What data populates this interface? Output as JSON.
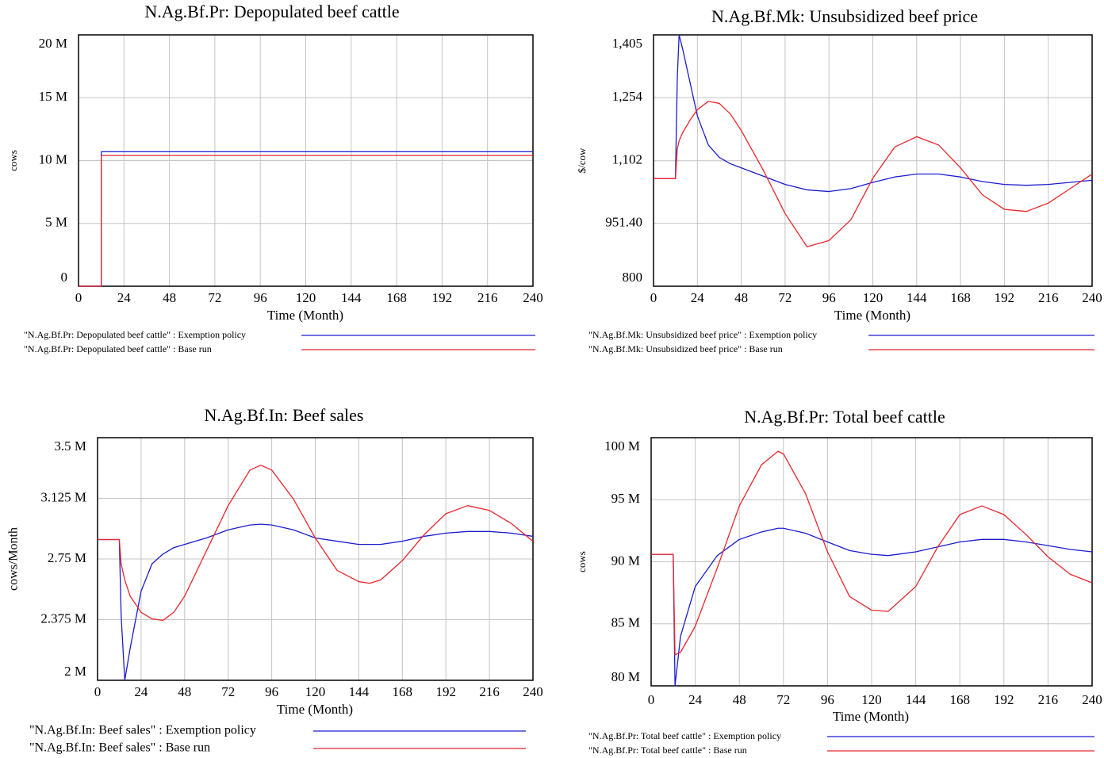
{
  "chart_data": [
    {
      "type": "line",
      "title": "N.Ag.Bf.Pr: Depopulated beef cattle",
      "x_label": "Time (Month)",
      "y_label": "cows",
      "x": [
        0,
        12,
        12,
        240
      ],
      "series": [
        {
          "name": "\"N.Ag.Bf.Pr: Depopulated beef cattle\" : Exemption policy",
          "color": "#1c1cd0",
          "values": [
            0,
            0,
            10700000,
            10700000
          ]
        },
        {
          "name": "\"N.Ag.Bf.Pr: Depopulated beef cattle\" : Base run",
          "color": "#e8262c",
          "values": [
            0,
            0,
            10400000,
            10400000
          ]
        }
      ],
      "xlim": [
        0,
        240
      ],
      "ylim": [
        0,
        20000000
      ],
      "xticks": [
        0,
        24,
        48,
        72,
        96,
        120,
        144,
        168,
        192,
        216,
        240
      ],
      "yticks": [
        {
          "value": 0,
          "label": "0"
        },
        {
          "value": 5000000,
          "label": "5 M"
        },
        {
          "value": 10000000,
          "label": "10 M"
        },
        {
          "value": 15000000,
          "label": "15 M"
        },
        {
          "value": 20000000,
          "label": "20 M"
        }
      ],
      "grid": true
    },
    {
      "type": "line",
      "title": "N.Ag.Bf.Mk: Unsubsidized beef price",
      "x_label": "Time (Month)",
      "y_label": "$/cow",
      "x": [
        0,
        12,
        13,
        14,
        16,
        20,
        24,
        30,
        36,
        42,
        48,
        60,
        72,
        84,
        96,
        108,
        120,
        132,
        144,
        156,
        168,
        180,
        192,
        204,
        216,
        228,
        240
      ],
      "series": [
        {
          "name": "\"N.Ag.Bf.Mk: Unsubsidized beef price\" : Exemption policy",
          "color": "#1c1cd0",
          "values": [
            1059,
            1059,
            1300,
            1405,
            1370,
            1290,
            1210,
            1140,
            1110,
            1095,
            1085,
            1065,
            1045,
            1032,
            1028,
            1035,
            1050,
            1063,
            1070,
            1070,
            1063,
            1052,
            1045,
            1043,
            1045,
            1050,
            1055
          ]
        },
        {
          "name": "\"N.Ag.Bf.Mk: Unsubsidized beef price\" : Base run",
          "color": "#e8262c",
          "values": [
            1059,
            1059,
            1130,
            1150,
            1170,
            1200,
            1225,
            1245,
            1240,
            1215,
            1175,
            1080,
            975,
            895,
            910,
            960,
            1060,
            1135,
            1160,
            1140,
            1085,
            1020,
            985,
            980,
            1000,
            1035,
            1070
          ]
        }
      ],
      "xlim": [
        0,
        240
      ],
      "ylim": [
        800,
        1405
      ],
      "xticks": [
        0,
        24,
        48,
        72,
        96,
        120,
        144,
        168,
        192,
        216,
        240
      ],
      "yticks": [
        800,
        {
          "value": 951.4,
          "label": "951.40"
        },
        {
          "value": 1102,
          "label": "1,102"
        },
        {
          "value": 1254,
          "label": "1,254"
        },
        {
          "value": 1405,
          "label": "1,405"
        }
      ],
      "grid": true
    },
    {
      "type": "line",
      "title": "N.Ag.Bf.In: Beef sales",
      "x_label": "Time (Month)",
      "y_label": "cows/Month",
      "x": [
        0,
        12,
        13,
        15,
        18,
        24,
        30,
        36,
        42,
        48,
        60,
        72,
        84,
        90,
        96,
        108,
        120,
        132,
        144,
        150,
        156,
        168,
        180,
        192,
        204,
        216,
        228,
        240
      ],
      "series": [
        {
          "name": "\"N.Ag.Bf.In: Beef sales\" : Exemption policy",
          "color": "#1c1cd0",
          "values": [
            2870000,
            2870000,
            2400000,
            2000000,
            2200000,
            2550000,
            2720000,
            2780000,
            2820000,
            2840000,
            2880000,
            2930000,
            2960000,
            2965000,
            2960000,
            2930000,
            2880000,
            2860000,
            2840000,
            2840000,
            2840000,
            2860000,
            2890000,
            2910000,
            2920000,
            2920000,
            2910000,
            2890000
          ]
        },
        {
          "name": "\"N.Ag.Bf.In: Beef sales\" : Base run",
          "color": "#e8262c",
          "values": [
            2870000,
            2870000,
            2720000,
            2620000,
            2520000,
            2420000,
            2380000,
            2370000,
            2420000,
            2520000,
            2800000,
            3080000,
            3300000,
            3330000,
            3300000,
            3120000,
            2880000,
            2680000,
            2610000,
            2600000,
            2620000,
            2740000,
            2900000,
            3030000,
            3080000,
            3050000,
            2970000,
            2860000
          ]
        }
      ],
      "xlim": [
        0,
        240
      ],
      "ylim": [
        2000000,
        3500000
      ],
      "xticks": [
        0,
        24,
        48,
        72,
        96,
        120,
        144,
        168,
        192,
        216,
        240
      ],
      "yticks": [
        {
          "value": 2000000,
          "label": "2 M"
        },
        {
          "value": 2375000,
          "label": "2.375 M"
        },
        {
          "value": 2750000,
          "label": "2.75 M"
        },
        {
          "value": 3125000,
          "label": "3.125 M"
        },
        {
          "value": 3500000,
          "label": "3.5 M"
        }
      ],
      "grid": true
    },
    {
      "type": "line",
      "title": "N.Ag.Bf.Pr: Total beef cattle",
      "x_label": "Time (Month)",
      "y_label": "cows",
      "x": [
        0,
        12,
        13,
        16,
        24,
        36,
        48,
        60,
        69,
        72,
        84,
        96,
        108,
        120,
        129,
        144,
        156,
        168,
        180,
        192,
        204,
        216,
        228,
        240
      ],
      "series": [
        {
          "name": "\"N.Ag.Bf.Pr: Total beef cattle\" : Exemption policy",
          "color": "#1c1cd0",
          "values": [
            90600000,
            90600000,
            80000000,
            84000000,
            88000000,
            90500000,
            91800000,
            92400000,
            92700000,
            92700000,
            92300000,
            91600000,
            90900000,
            90600000,
            90500000,
            90800000,
            91200000,
            91600000,
            91800000,
            91800000,
            91600000,
            91300000,
            91000000,
            90800000
          ]
        },
        {
          "name": "\"N.Ag.Bf.Pr: Total beef cattle\" : Base run",
          "color": "#e8262c",
          "values": [
            90600000,
            90600000,
            82500000,
            82700000,
            84800000,
            89500000,
            94500000,
            97800000,
            98900000,
            98700000,
            95500000,
            90800000,
            87200000,
            86100000,
            86000000,
            88000000,
            91200000,
            93800000,
            94500000,
            93800000,
            92200000,
            90400000,
            89000000,
            88300000
          ]
        }
      ],
      "xlim": [
        0,
        240
      ],
      "ylim": [
        80000000,
        100000000
      ],
      "xticks": [
        0,
        24,
        48,
        72,
        96,
        120,
        144,
        168,
        192,
        216,
        240
      ],
      "yticks": [
        {
          "value": 80000000,
          "label": "80 M"
        },
        {
          "value": 85000000,
          "label": "85 M"
        },
        {
          "value": 90000000,
          "label": "90 M"
        },
        {
          "value": 95000000,
          "label": "95 M"
        },
        {
          "value": 100000000,
          "label": "100 M"
        }
      ],
      "grid": true
    }
  ]
}
